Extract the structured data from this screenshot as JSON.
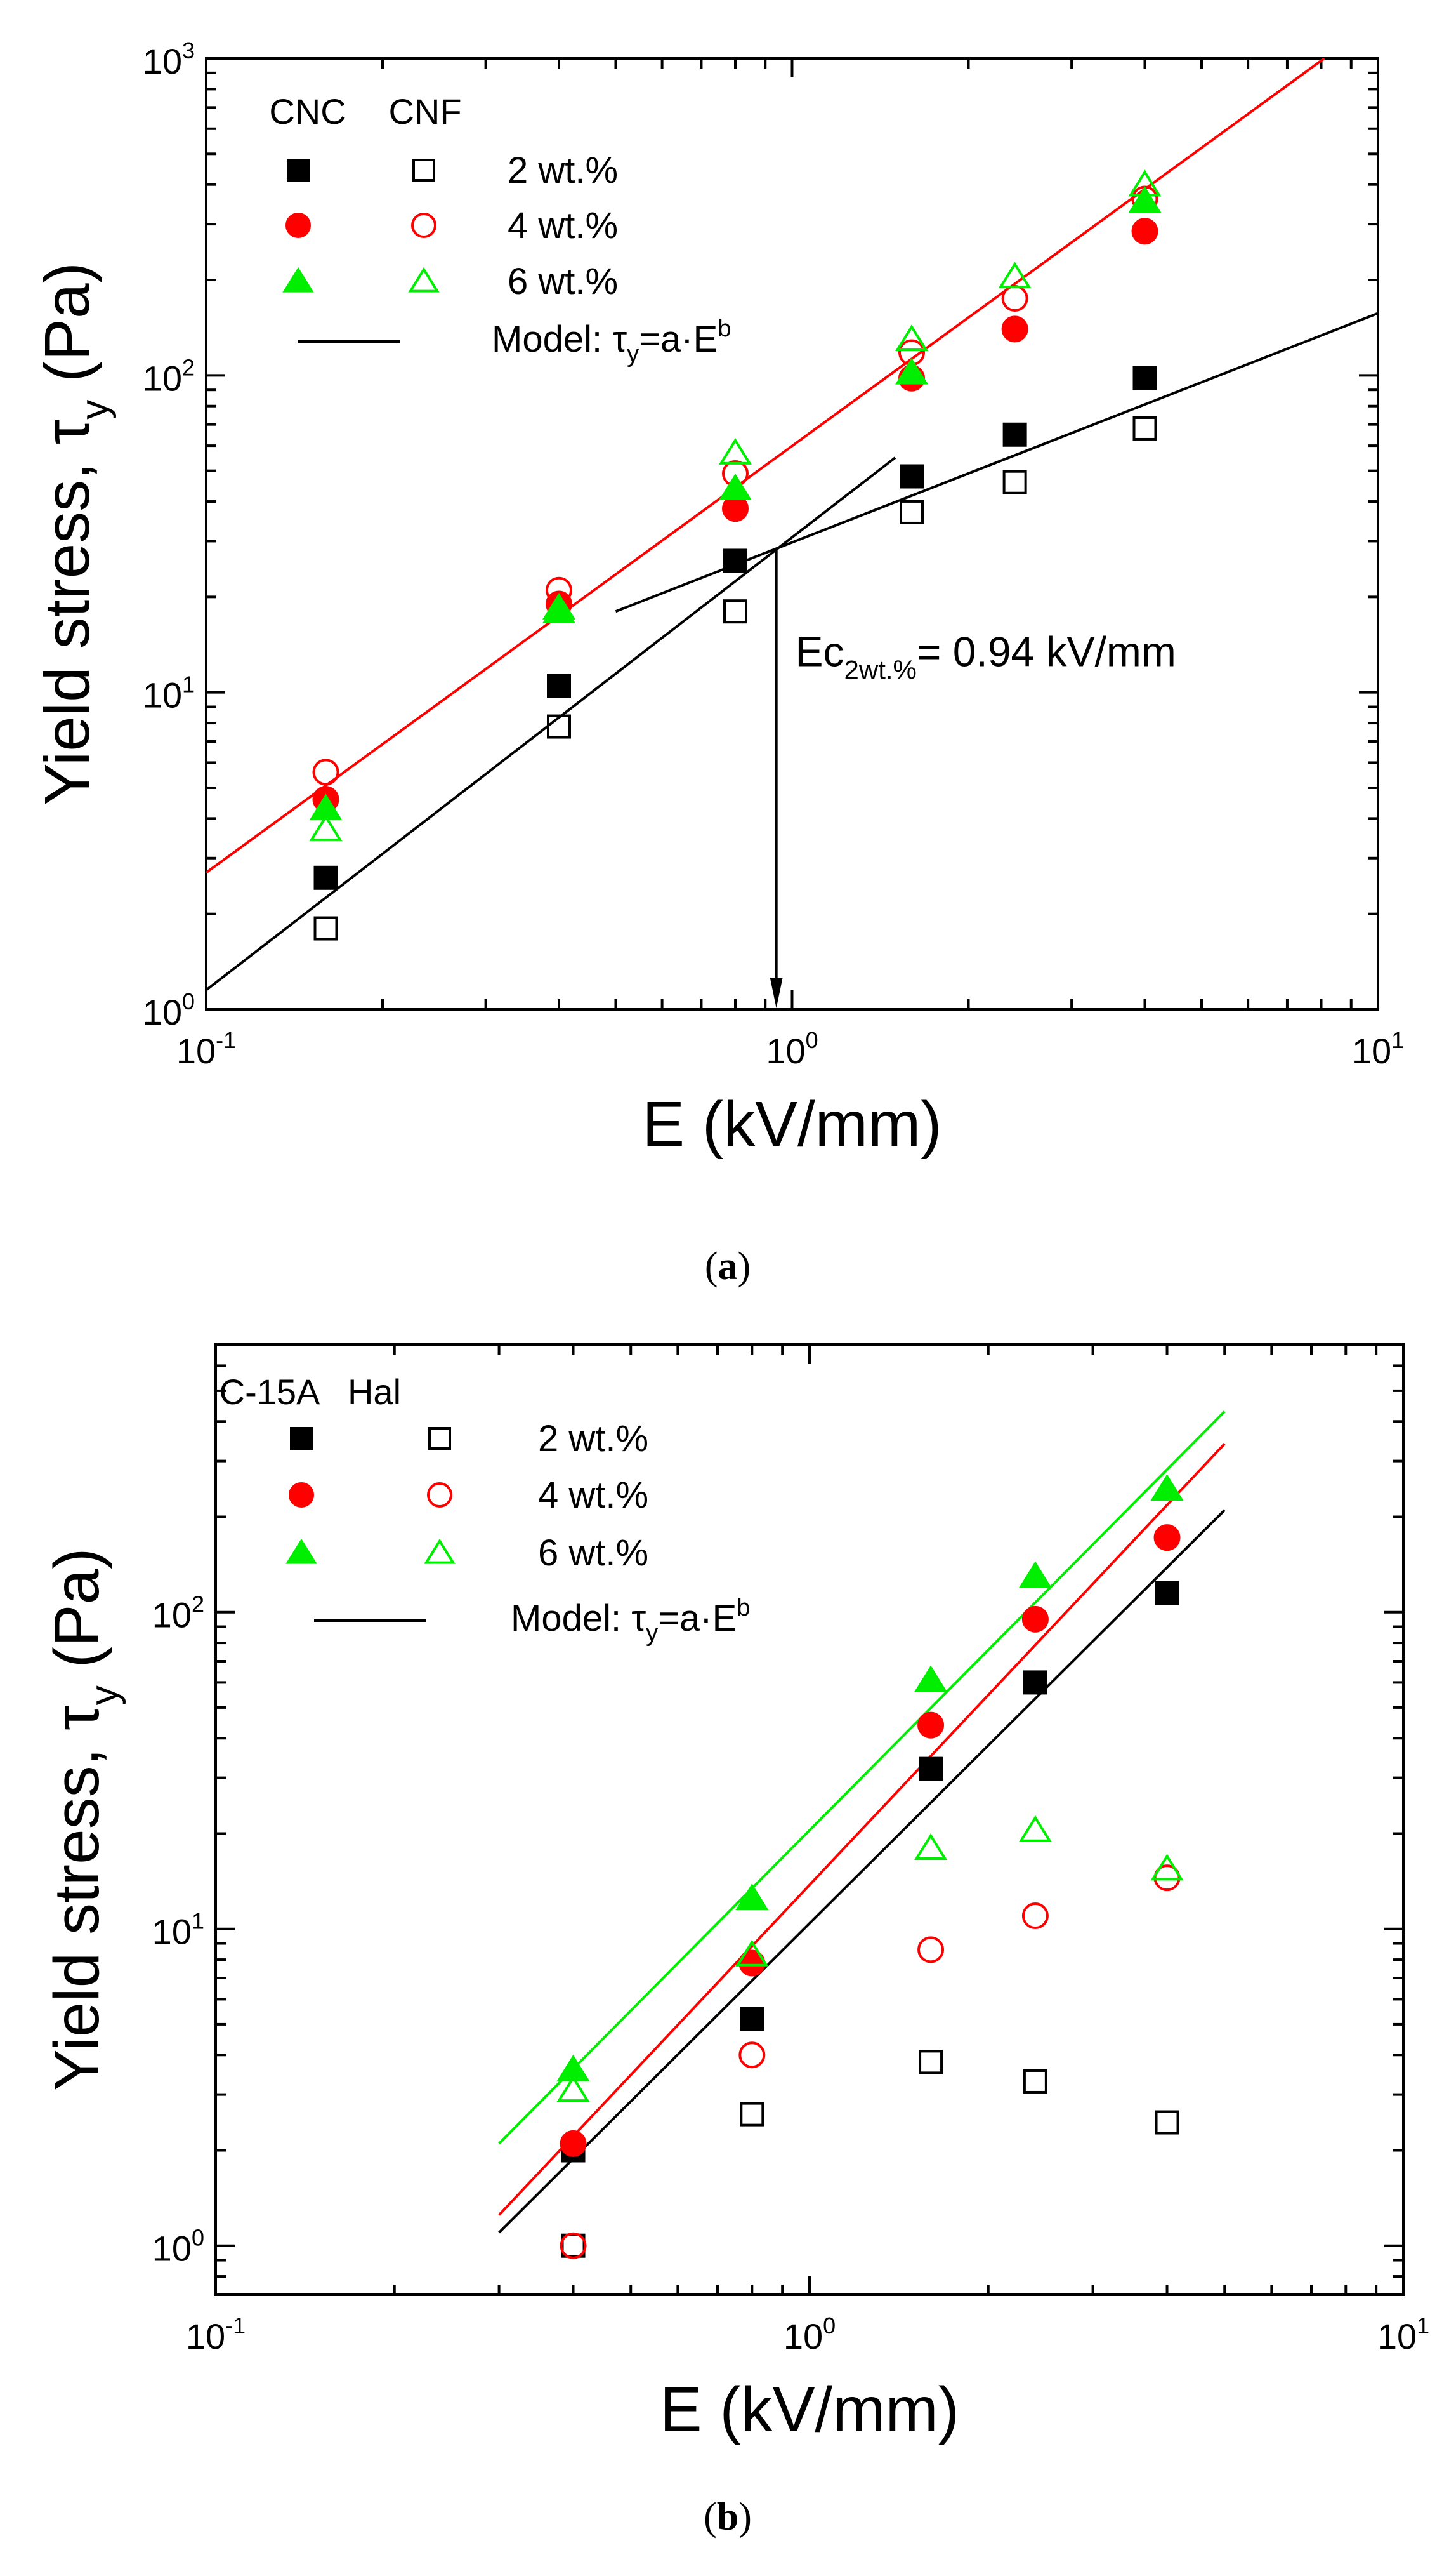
{
  "colors": {
    "black": "#000000",
    "red": "#ff0000",
    "green": "#00ee00"
  },
  "chart_data": [
    {
      "panel": "a",
      "caption": "a",
      "type": "scatter",
      "scale": "log-log",
      "xlabel": "E (kV/mm)",
      "ylabel_main": "Yield stress, τ",
      "ylabel_sub": "y",
      "ylabel_unit": " (Pa)",
      "xlim": [
        0.1,
        10
      ],
      "ylim": [
        1,
        1000
      ],
      "x_ticks": [
        {
          "value": 0.1,
          "base": "10",
          "exp": "-1"
        },
        {
          "value": 1,
          "base": "10",
          "exp": "0"
        },
        {
          "value": 10,
          "base": "10",
          "exp": "1"
        }
      ],
      "y_ticks": [
        {
          "value": 1,
          "base": "10",
          "exp": "0"
        },
        {
          "value": 10,
          "base": "10",
          "exp": "1"
        },
        {
          "value": 100,
          "base": "10",
          "exp": "2"
        },
        {
          "value": 1000,
          "base": "10",
          "exp": "3"
        }
      ],
      "legend": {
        "group_headers": [
          "CNC",
          "CNF"
        ],
        "rows": [
          {
            "label": "2 wt.%",
            "color": "#000000",
            "marker": "square"
          },
          {
            "label": "4 wt.%",
            "color": "#ff0000",
            "marker": "circle"
          },
          {
            "label": "6 wt.%",
            "color": "#00ee00",
            "marker": "triangle"
          }
        ],
        "model_prefix": "Model: τ",
        "model_sub": "y",
        "model_mid": "=a·E",
        "model_sup": "b"
      },
      "series": [
        {
          "name": "CNC 2 wt.%",
          "marker": "square",
          "filled": true,
          "color": "#000000",
          "x": [
            0.16,
            0.4,
            0.8,
            1.6,
            2.4,
            4.0
          ],
          "y": [
            2.6,
            10.5,
            26,
            48,
            65,
            98
          ]
        },
        {
          "name": "CNF 2 wt.%",
          "marker": "square",
          "filled": false,
          "color": "#000000",
          "x": [
            0.16,
            0.4,
            0.8,
            1.6,
            2.4,
            4.0
          ],
          "y": [
            1.8,
            7.8,
            18,
            37,
            46,
            68
          ]
        },
        {
          "name": "CNC 4 wt.%",
          "marker": "circle",
          "filled": true,
          "color": "#ff0000",
          "x": [
            0.16,
            0.4,
            0.8,
            1.6,
            2.4,
            4.0
          ],
          "y": [
            4.6,
            19,
            38,
            98,
            140,
            285
          ]
        },
        {
          "name": "CNF 4 wt.%",
          "marker": "circle",
          "filled": false,
          "color": "#ff0000",
          "x": [
            0.16,
            0.4,
            0.8,
            1.6,
            2.4,
            4.0
          ],
          "y": [
            5.6,
            21,
            49,
            118,
            175,
            360
          ]
        },
        {
          "name": "CNC 6 wt.%",
          "marker": "triangle",
          "filled": true,
          "color": "#00ee00",
          "x": [
            0.16,
            0.4,
            0.8,
            1.6,
            2.4,
            4.0
          ],
          "y": [
            4.3,
            18,
            44,
            102,
            null,
            355
          ]
        },
        {
          "name": "CNF 6 wt.%",
          "marker": "triangle",
          "filled": false,
          "color": "#00ee00",
          "x": [
            0.16,
            0.4,
            0.8,
            1.6,
            2.4,
            4.0
          ],
          "y": [
            3.7,
            18.5,
            57,
            130,
            205,
            400
          ]
        }
      ],
      "fit_lines": [
        {
          "color": "#ff0000",
          "x": [
            0.1,
            8.1
          ],
          "y": [
            2.7,
            1000
          ]
        },
        {
          "color": "#000000",
          "x": [
            0.1,
            1.5
          ],
          "y": [
            1.15,
            55
          ]
        },
        {
          "color": "#000000",
          "x": [
            0.5,
            10
          ],
          "y": [
            18,
            157
          ]
        }
      ],
      "annotation": {
        "prefix": "Ec",
        "sub": "2wt.%",
        "suffix": "= 0.94 kV/mm",
        "arrow_x": 0.94,
        "arrow_from_y": 28.5,
        "arrow_to_y": 1,
        "label_x": 1.0,
        "label_y": 13.5
      }
    },
    {
      "panel": "b",
      "caption": "b",
      "type": "scatter",
      "scale": "log-log",
      "xlabel": "E (kV/mm)",
      "ylabel_main": "Yield stress, τ",
      "ylabel_sub": "y",
      "ylabel_unit": " (Pa)",
      "xlim": [
        0.1,
        10
      ],
      "ylim": [
        0.7,
        700
      ],
      "x_ticks": [
        {
          "value": 0.1,
          "base": "10",
          "exp": "-1"
        },
        {
          "value": 1,
          "base": "10",
          "exp": "0"
        },
        {
          "value": 10,
          "base": "10",
          "exp": "1"
        }
      ],
      "y_ticks": [
        {
          "value": 1,
          "base": "10",
          "exp": "0"
        },
        {
          "value": 10,
          "base": "10",
          "exp": "1"
        },
        {
          "value": 100,
          "base": "10",
          "exp": "2"
        }
      ],
      "legend": {
        "group_headers": [
          "C-15A",
          "Hal"
        ],
        "rows": [
          {
            "label": "2 wt.%",
            "color": "#000000",
            "marker": "square"
          },
          {
            "label": "4 wt.%",
            "color": "#ff0000",
            "marker": "circle"
          },
          {
            "label": "6 wt.%",
            "color": "#00ee00",
            "marker": "triangle"
          }
        ],
        "model_prefix": "Model: τ",
        "model_sub": "y",
        "model_mid": "=a·E",
        "model_sup": "b"
      },
      "series": [
        {
          "name": "C-15A 2 wt.%",
          "marker": "square",
          "filled": true,
          "color": "#000000",
          "x": [
            0.4,
            0.8,
            1.6,
            2.4,
            4.0
          ],
          "y": [
            2.0,
            5.2,
            32,
            60,
            115
          ]
        },
        {
          "name": "Hal 2 wt.%",
          "marker": "square",
          "filled": false,
          "color": "#000000",
          "x": [
            0.4,
            0.8,
            1.6,
            2.4,
            4.0
          ],
          "y": [
            1.0,
            2.6,
            3.8,
            3.3,
            2.45
          ]
        },
        {
          "name": "C-15A 4 wt.%",
          "marker": "circle",
          "filled": true,
          "color": "#ff0000",
          "x": [
            0.4,
            0.8,
            1.6,
            2.4,
            4.0
          ],
          "y": [
            2.1,
            7.8,
            44,
            95,
            172
          ]
        },
        {
          "name": "Hal 4 wt.%",
          "marker": "circle",
          "filled": false,
          "color": "#ff0000",
          "x": [
            0.4,
            0.8,
            1.6,
            2.4,
            4.0
          ],
          "y": [
            1.0,
            4.0,
            8.6,
            11,
            14.5
          ]
        },
        {
          "name": "C-15A 6 wt.%",
          "marker": "triangle",
          "filled": true,
          "color": "#00ee00",
          "x": [
            0.4,
            0.8,
            1.6,
            2.4,
            4.0
          ],
          "y": [
            3.6,
            12.5,
            61,
            130,
            245
          ]
        },
        {
          "name": "Hal 6 wt.%",
          "marker": "triangle",
          "filled": false,
          "color": "#00ee00",
          "x": [
            0.4,
            0.8,
            1.6,
            2.4,
            4.0
          ],
          "y": [
            3.1,
            8.3,
            18,
            20.5,
            15.5
          ]
        }
      ],
      "fit_lines": [
        {
          "color": "#00ee00",
          "x": [
            0.3,
            5.0
          ],
          "y": [
            2.1,
            430
          ]
        },
        {
          "color": "#ff0000",
          "x": [
            0.3,
            5.0
          ],
          "y": [
            1.25,
            340
          ]
        },
        {
          "color": "#000000",
          "x": [
            0.3,
            5.0
          ],
          "y": [
            1.1,
            210
          ]
        }
      ]
    }
  ]
}
